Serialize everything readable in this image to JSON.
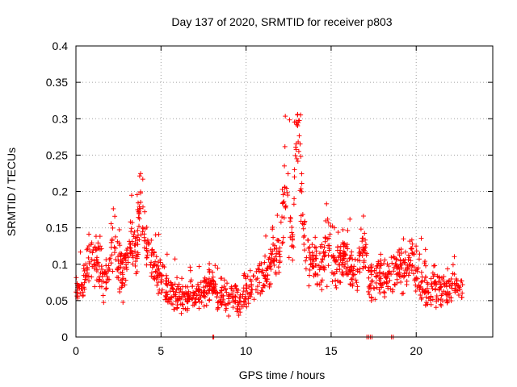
{
  "chart_data": {
    "type": "scatter",
    "title": "Day 137 of 2020, SRMTID for receiver p803",
    "xlabel": "GPS time / hours",
    "ylabel": "SRMTID / TECUs",
    "xlim": [
      0,
      24.5
    ],
    "ylim": [
      0,
      0.4
    ],
    "grid": true,
    "marker": "+",
    "color": "#ff0000",
    "x_ticks": [
      0,
      5,
      10,
      15,
      20
    ],
    "x_tick_labels": [
      "0",
      "5",
      "10",
      "15",
      "20"
    ],
    "y_ticks": [
      0,
      0.05,
      0.1,
      0.15,
      0.2,
      0.25,
      0.3,
      0.35,
      0.4
    ],
    "y_tick_labels": [
      "0",
      "0.05",
      "0.1",
      "0.15",
      "0.2",
      "0.25",
      "0.3",
      "0.35",
      "0.4"
    ],
    "data_range_hours": [
      0,
      22.75
    ],
    "zero_value_points_x": [
      8.05,
      8.1,
      17.1,
      17.2,
      17.3,
      17.4,
      18.55,
      18.65
    ],
    "series": [
      {
        "name": "SRMTID",
        "x": [
          0.0,
          0.25,
          0.5,
          0.75,
          1.0,
          1.25,
          1.5,
          1.75,
          2.0,
          2.25,
          2.5,
          2.75,
          3.0,
          3.25,
          3.5,
          3.75,
          4.0,
          4.25,
          4.5,
          4.75,
          5.0,
          5.25,
          5.5,
          5.75,
          6.0,
          6.25,
          6.5,
          6.75,
          7.0,
          7.25,
          7.5,
          7.75,
          8.0,
          8.25,
          8.5,
          8.75,
          9.0,
          9.25,
          9.5,
          9.75,
          10.0,
          10.25,
          10.5,
          10.75,
          11.0,
          11.25,
          11.5,
          11.75,
          12.0,
          12.25,
          12.5,
          12.75,
          13.0,
          13.25,
          13.5,
          13.75,
          14.0,
          14.25,
          14.5,
          14.75,
          15.0,
          15.25,
          15.5,
          15.75,
          16.0,
          16.25,
          16.5,
          16.75,
          17.0,
          17.25,
          17.5,
          17.75,
          18.0,
          18.25,
          18.5,
          18.75,
          19.0,
          19.25,
          19.5,
          19.75,
          20.0,
          20.25,
          20.5,
          20.75,
          21.0,
          21.25,
          21.5,
          21.75,
          22.0,
          22.25,
          22.5,
          22.75
        ],
        "y": [
          0.07,
          0.06,
          0.08,
          0.1,
          0.11,
          0.1,
          0.09,
          0.08,
          0.1,
          0.14,
          0.1,
          0.09,
          0.11,
          0.13,
          0.12,
          0.18,
          0.13,
          0.12,
          0.11,
          0.09,
          0.08,
          0.07,
          0.06,
          0.06,
          0.05,
          0.06,
          0.05,
          0.06,
          0.05,
          0.06,
          0.06,
          0.07,
          0.07,
          0.06,
          0.06,
          0.05,
          0.05,
          0.06,
          0.05,
          0.05,
          0.06,
          0.07,
          0.07,
          0.08,
          0.08,
          0.09,
          0.1,
          0.1,
          0.12,
          0.2,
          0.17,
          0.13,
          0.3,
          0.2,
          0.12,
          0.11,
          0.1,
          0.09,
          0.1,
          0.13,
          0.11,
          0.09,
          0.1,
          0.12,
          0.1,
          0.09,
          0.08,
          0.12,
          0.11,
          0.07,
          0.08,
          0.09,
          0.08,
          0.08,
          0.09,
          0.08,
          0.1,
          0.09,
          0.1,
          0.11,
          0.08,
          0.07,
          0.07,
          0.06,
          0.07,
          0.07,
          0.06,
          0.07,
          0.06,
          0.07,
          0.06,
          0.07
        ],
        "spread": [
          0.03,
          0.03,
          0.04,
          0.05,
          0.05,
          0.05,
          0.05,
          0.05,
          0.05,
          0.06,
          0.05,
          0.05,
          0.05,
          0.05,
          0.06,
          0.09,
          0.06,
          0.05,
          0.05,
          0.04,
          0.04,
          0.04,
          0.035,
          0.035,
          0.03,
          0.03,
          0.03,
          0.03,
          0.03,
          0.03,
          0.03,
          0.03,
          0.03,
          0.03,
          0.03,
          0.03,
          0.03,
          0.03,
          0.03,
          0.03,
          0.035,
          0.04,
          0.04,
          0.04,
          0.04,
          0.04,
          0.05,
          0.05,
          0.06,
          0.12,
          0.08,
          0.06,
          0.06,
          0.09,
          0.06,
          0.05,
          0.05,
          0.05,
          0.05,
          0.08,
          0.05,
          0.05,
          0.05,
          0.05,
          0.05,
          0.05,
          0.04,
          0.05,
          0.05,
          0.04,
          0.04,
          0.04,
          0.04,
          0.04,
          0.05,
          0.04,
          0.05,
          0.05,
          0.05,
          0.05,
          0.04,
          0.04,
          0.04,
          0.03,
          0.04,
          0.04,
          0.03,
          0.04,
          0.04,
          0.04,
          0.03,
          0.04
        ]
      }
    ]
  }
}
